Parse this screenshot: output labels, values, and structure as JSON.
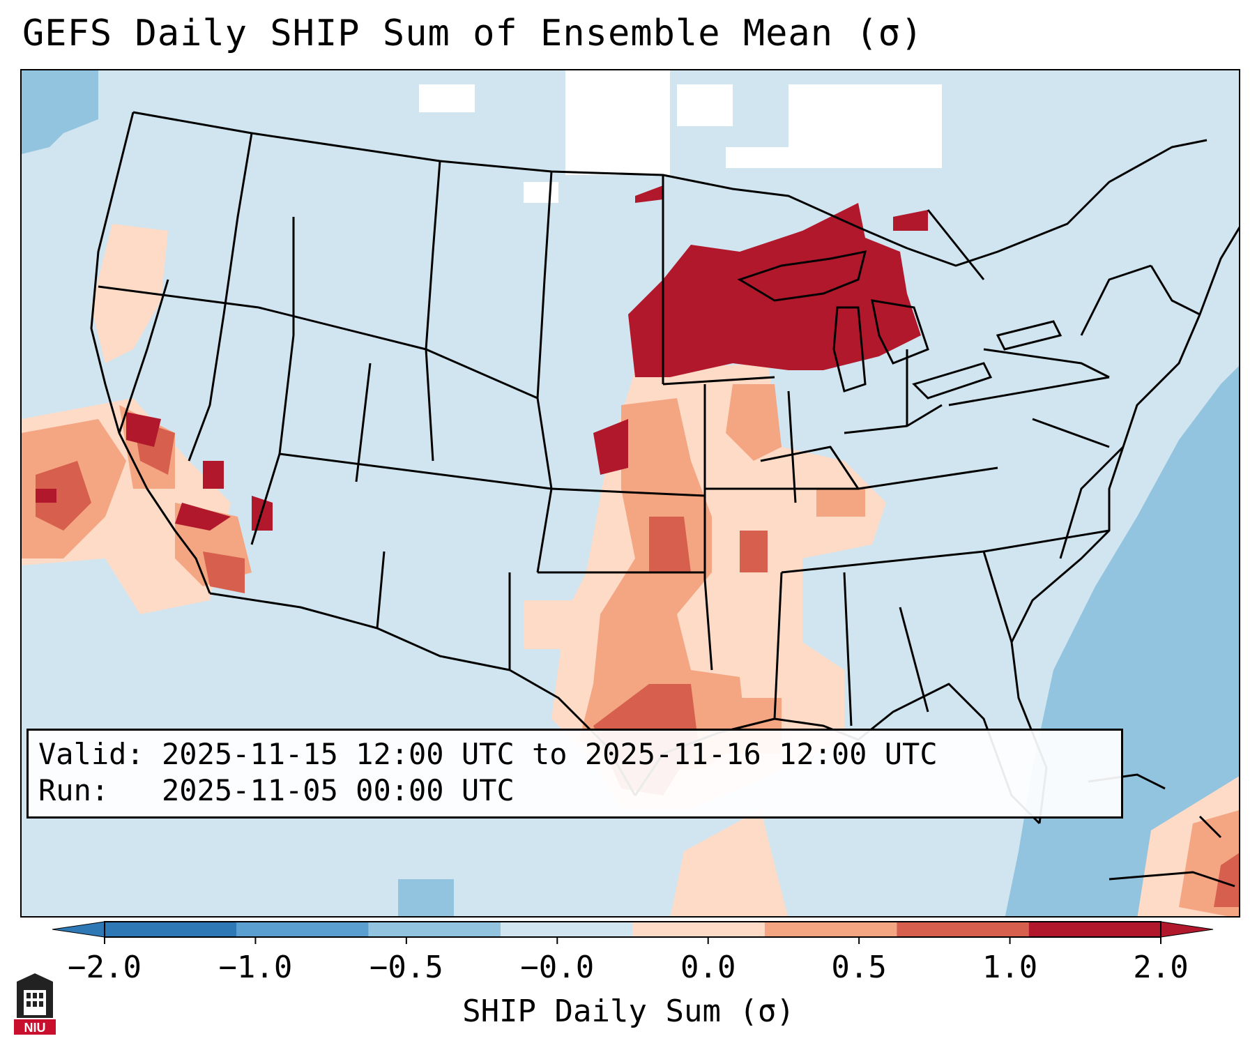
{
  "title": "GEFS Daily SHIP Sum of Ensemble Mean (σ)",
  "info": {
    "valid_label": "Valid:",
    "valid_value": "2025-11-15 12:00 UTC to 2025-11-16 12:00 UTC",
    "run_label": "Run:",
    "run_value": "2025-11-05 00:00 UTC"
  },
  "colorbar": {
    "label": "SHIP Daily Sum (σ)",
    "ticks": [
      "−2.0",
      "−1.0",
      "−0.5",
      "−0.0",
      "0.0",
      "0.5",
      "1.0",
      "2.0"
    ],
    "colors": [
      "#2e78b5",
      "#5a9fcf",
      "#93c4df",
      "#d1e5f0",
      "#fddbc7",
      "#f4a582",
      "#d6604d",
      "#b2182b"
    ],
    "extend": "both"
  },
  "map": {
    "projection": "Lambert conformal, CONUS",
    "colors": {
      "background": "#d1e5f0",
      "white": "#ffffff",
      "light_blue": "#93c4df",
      "light_red": "#fddbc7",
      "medium_red": "#f4a582",
      "red": "#d6604d",
      "dark_red": "#b2182b",
      "border": "#000000"
    },
    "features": [
      "state borders",
      "country borders",
      "coastlines",
      "great lakes"
    ]
  },
  "logo": {
    "text": "NIU"
  }
}
